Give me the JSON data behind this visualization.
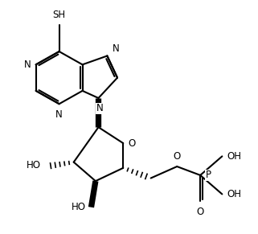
{
  "background_color": "#ffffff",
  "line_color": "#000000",
  "line_width": 1.5,
  "font_size": 8.5,
  "fig_width": 3.21,
  "fig_height": 2.91,
  "dpi": 100,
  "xlim": [
    1.0,
    9.8
  ],
  "ylim": [
    2.0,
    10.0
  ]
}
